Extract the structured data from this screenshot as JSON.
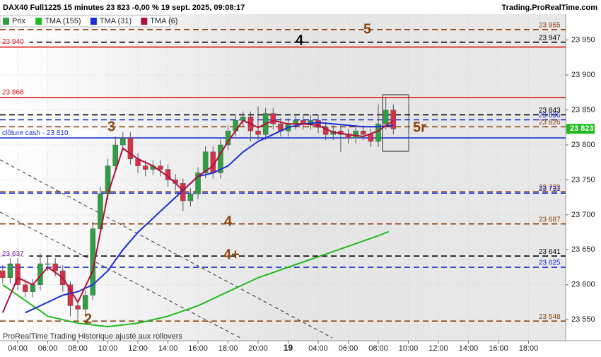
{
  "chart_data": {
    "type": "candlestick",
    "title": "DAX40 Full1225 15 minutes 23 823 -0,00 % 19 sept. 2025, 09:08:17",
    "source": "Trading.ProRealTime.com",
    "footer": "ProRealTime Trading  Historique ajusté aux rollovers",
    "xlim": [
      2.82,
      40.47
    ],
    "xticks": [
      {
        "value": 4,
        "label": "04:00"
      },
      {
        "value": 6,
        "label": "06:00"
      },
      {
        "value": 8,
        "label": "08:00"
      },
      {
        "value": 10,
        "label": "10:00"
      },
      {
        "value": 12,
        "label": "12:00"
      },
      {
        "value": 14,
        "label": "14:00"
      },
      {
        "value": 16,
        "label": "16:00"
      },
      {
        "value": 18,
        "label": "18:00"
      },
      {
        "value": 20,
        "label": "20:00"
      },
      {
        "value": 22,
        "label": "19"
      },
      {
        "value": 24,
        "label": "04:00"
      },
      {
        "value": 26,
        "label": "06:00"
      },
      {
        "value": 28,
        "label": "08:00"
      },
      {
        "value": 30,
        "label": "10:00"
      },
      {
        "value": 32,
        "label": "12:00"
      },
      {
        "value": 34,
        "label": "14:00"
      },
      {
        "value": 36,
        "label": "16:00"
      },
      {
        "value": 38,
        "label": "18:00"
      }
    ],
    "ylim": [
      23532,
      23979
    ],
    "yticks": [
      {
        "value": 23550,
        "label": "23 550"
      },
      {
        "value": 23600,
        "label": "23 600"
      },
      {
        "value": 23650,
        "label": "23 650"
      },
      {
        "value": 23700,
        "label": "23 700"
      },
      {
        "value": 23750,
        "label": "23 750"
      },
      {
        "value": 23800,
        "label": "23 800"
      },
      {
        "value": 23850,
        "label": "23 850"
      },
      {
        "value": 23900,
        "label": "23 900"
      },
      {
        "value": 23950,
        "label": "23 950"
      }
    ],
    "candles": {
      "name": "Prix",
      "up_color": "#2ea043",
      "down_color": "#d9304a",
      "x": [
        3,
        3.5,
        4,
        4.5,
        5,
        5.5,
        6,
        6.5,
        7,
        7.5,
        8,
        8.5,
        9,
        9.5,
        10,
        10.5,
        11,
        11.5,
        12,
        12.5,
        13,
        13.5,
        14,
        14.5,
        15,
        15.5,
        16,
        16.5,
        17,
        17.5,
        18,
        18.5,
        19,
        19.5,
        20,
        20.5,
        21,
        21.5,
        22,
        22.5,
        23,
        23.5,
        24,
        24.5,
        25,
        25.5,
        26,
        26.5,
        27,
        27.5,
        28,
        28.5,
        29
      ],
      "open": [
        23620,
        23610,
        23630,
        23600,
        23590,
        23600,
        23630,
        23630,
        23620,
        23600,
        23570,
        23565,
        23585,
        23680,
        23730,
        23770,
        23800,
        23810,
        23780,
        23770,
        23765,
        23770,
        23765,
        23750,
        23745,
        23720,
        23730,
        23760,
        23790,
        23760,
        23800,
        23820,
        23835,
        23840,
        23820,
        23815,
        23845,
        23830,
        23820,
        23830,
        23835,
        23830,
        23835,
        23825,
        23815,
        23820,
        23815,
        23810,
        23820,
        23815,
        23805,
        23830,
        23850
      ],
      "high": [
        23628,
        23638,
        23638,
        23608,
        23608,
        23645,
        23640,
        23638,
        23628,
        23605,
        23578,
        23592,
        23690,
        23740,
        23780,
        23812,
        23818,
        23818,
        23788,
        23778,
        23778,
        23778,
        23772,
        23758,
        23752,
        23738,
        23768,
        23798,
        23798,
        23808,
        23828,
        23843,
        23848,
        23848,
        23855,
        23853,
        23853,
        23838,
        23838,
        23843,
        23843,
        23843,
        23843,
        23833,
        23828,
        23828,
        23823,
        23828,
        23828,
        23823,
        23858,
        23868,
        23858
      ],
      "low": [
        23602,
        23602,
        23592,
        23582,
        23582,
        23592,
        23620,
        23612,
        23590,
        23555,
        23550,
        23555,
        23578,
        23672,
        23722,
        23762,
        23792,
        23772,
        23760,
        23755,
        23757,
        23755,
        23740,
        23735,
        23705,
        23712,
        23722,
        23752,
        23752,
        23752,
        23792,
        23812,
        23827,
        23805,
        23807,
        23807,
        23822,
        23812,
        23812,
        23822,
        23822,
        23822,
        23817,
        23807,
        23807,
        23790,
        23802,
        23802,
        23807,
        23797,
        23797,
        23822,
        23815
      ],
      "close": [
        23610,
        23630,
        23600,
        23590,
        23600,
        23630,
        23630,
        23620,
        23600,
        23570,
        23565,
        23585,
        23680,
        23730,
        23770,
        23800,
        23810,
        23780,
        23770,
        23765,
        23770,
        23765,
        23750,
        23745,
        23720,
        23730,
        23760,
        23790,
        23760,
        23800,
        23820,
        23835,
        23840,
        23820,
        23815,
        23845,
        23830,
        23820,
        23830,
        23835,
        23830,
        23835,
        23825,
        23815,
        23820,
        23815,
        23810,
        23820,
        23815,
        23805,
        23830,
        23850,
        23823
      ]
    },
    "series": [
      {
        "name": "TMA (155)",
        "color": "#22bb22",
        "x": [
          3,
          6,
          8,
          10,
          12,
          14,
          16,
          18,
          20,
          22,
          24,
          26,
          28,
          28.7
        ],
        "values": [
          23600,
          23555,
          23545,
          23540,
          23545,
          23555,
          23570,
          23590,
          23610,
          23625,
          23640,
          23655,
          23670,
          23676
        ]
      },
      {
        "name": "TMA (31)",
        "color": "#1a2fd6",
        "x": [
          4.5,
          6,
          7,
          8,
          9,
          10,
          11,
          12,
          13,
          14,
          15,
          16,
          17,
          18,
          19,
          20,
          21,
          22,
          23,
          24,
          25,
          26,
          27,
          28,
          29
        ],
        "values": [
          23560,
          23575,
          23585,
          23590,
          23600,
          23620,
          23650,
          23675,
          23695,
          23715,
          23735,
          23755,
          23760,
          23770,
          23790,
          23805,
          23815,
          23825,
          23830,
          23832,
          23830,
          23828,
          23826,
          23826,
          23828
        ]
      },
      {
        "name": "TMA (6)",
        "color": "#b0103a",
        "x": [
          3,
          4,
          5,
          6,
          7,
          8,
          9,
          10,
          11,
          12,
          13,
          14,
          15,
          16,
          17,
          18,
          19,
          20,
          21,
          22,
          23,
          24,
          25,
          26,
          27,
          28,
          29
        ],
        "values": [
          23560,
          23610,
          23600,
          23625,
          23610,
          23575,
          23620,
          23730,
          23795,
          23780,
          23770,
          23755,
          23735,
          23755,
          23770,
          23805,
          23835,
          23825,
          23835,
          23830,
          23830,
          23828,
          23818,
          23815,
          23812,
          23820,
          23835
        ]
      }
    ],
    "levels": [
      {
        "value": 23965,
        "label": "23 965",
        "color": "#8b4513",
        "style": "dashed",
        "side": "right"
      },
      {
        "value": 23947,
        "label": "23 947",
        "color": "#000000",
        "style": "dashed",
        "side": "right"
      },
      {
        "value": 23940,
        "label": "23 940",
        "color": "#dd1111",
        "style": "solid",
        "side": "left"
      },
      {
        "value": 23868,
        "label": "23 868",
        "color": "#dd1111",
        "style": "solid",
        "side": "left"
      },
      {
        "value": 23843,
        "label": "23 843",
        "color": "#000000",
        "style": "dashed",
        "side": "right"
      },
      {
        "value": 23836,
        "label": "23 836",
        "color": "#1a2fd6",
        "style": "dashed",
        "side": "right"
      },
      {
        "value": 23826,
        "label": "23 826",
        "color": "#8b4513",
        "style": "dashed",
        "side": "right"
      },
      {
        "value": 23810,
        "label": "clôture cash -  23 810",
        "color": "#1a2fd6",
        "style": "solid",
        "side": "left"
      },
      {
        "value": 23733,
        "label": "23 733",
        "color": "#8b4513",
        "style": "dashed",
        "side": "right"
      },
      {
        "value": 23731,
        "label": "23 731",
        "color": "#1a2fd6",
        "style": "dashed",
        "side": "right"
      },
      {
        "value": 23687,
        "label": "23 687",
        "color": "#8b4513",
        "style": "dashed",
        "side": "right"
      },
      {
        "value": 23641,
        "label": "23 641",
        "color": "#000000",
        "style": "dashed",
        "side": "right"
      },
      {
        "value": 23637,
        "label": "23 637",
        "color": "#7a1fa2",
        "style": "none",
        "side": "left"
      },
      {
        "value": 23625,
        "label": "23 625",
        "color": "#1a2fd6",
        "style": "dashed",
        "side": "right"
      },
      {
        "value": 23548,
        "label": "23 548",
        "color": "#8b4513",
        "style": "dashed",
        "side": "right"
      }
    ],
    "current_price": {
      "value": 23823,
      "label": "23 823",
      "color": "#22bb22"
    },
    "annotations": [
      {
        "text": "5",
        "color": "#8b4513"
      },
      {
        "text": "4",
        "color": "#000000"
      },
      {
        "text": "3",
        "color": "#8b4513"
      },
      {
        "text": "5r",
        "color": "#8b4513"
      },
      {
        "text": "4",
        "color": "#8b4513"
      },
      {
        "text": "4+",
        "color": "#8b4513"
      },
      {
        "text": "2",
        "color": "#8b4513"
      }
    ]
  }
}
